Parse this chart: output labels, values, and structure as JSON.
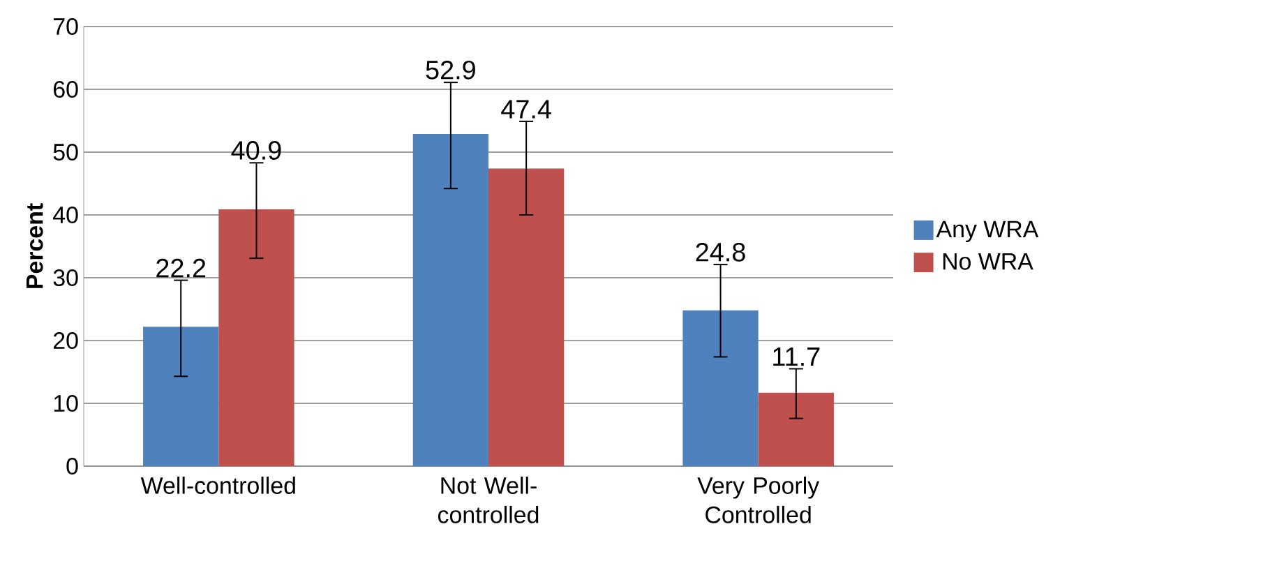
{
  "chart_data": {
    "type": "bar",
    "ylabel": "Percent",
    "categories": [
      "Well-controlled",
      "Not Well-controlled",
      "Very Poorly Controlled"
    ],
    "series": [
      {
        "name": "Any WRA",
        "color": "#4f81bd",
        "values": [
          22.2,
          52.9,
          24.8
        ],
        "errors": [
          [
            14.3,
            29.6
          ],
          [
            44.2,
            61.1
          ],
          [
            17.4,
            32.1
          ]
        ]
      },
      {
        "name": "No WRA",
        "color": "#c0504d",
        "values": [
          40.9,
          47.4,
          11.7
        ],
        "errors": [
          [
            33.1,
            48.3
          ],
          [
            40.0,
            54.9
          ],
          [
            7.6,
            15.5
          ]
        ]
      }
    ],
    "ylim": [
      0,
      70
    ],
    "yticks": [
      0,
      10,
      20,
      30,
      40,
      50,
      60,
      70
    ],
    "grid": "y",
    "legend": "right",
    "data_labels": true
  }
}
